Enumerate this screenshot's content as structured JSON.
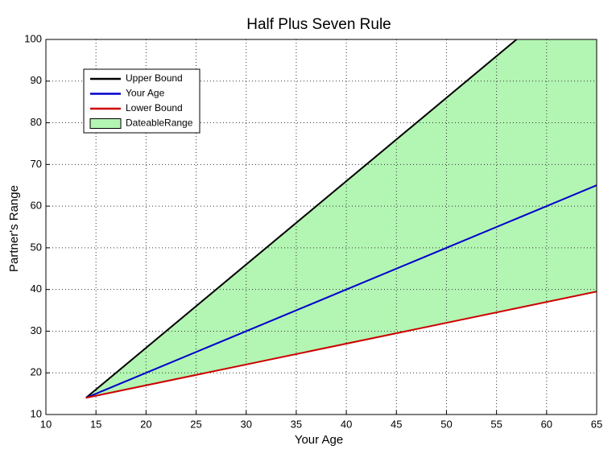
{
  "chart_data": {
    "type": "line",
    "title": "Half Plus Seven Rule",
    "xlabel": "Your Age",
    "ylabel": "Partner's Range",
    "xlim": [
      10,
      65
    ],
    "ylim": [
      10,
      100
    ],
    "xticks": [
      10,
      15,
      20,
      25,
      30,
      35,
      40,
      45,
      50,
      55,
      60,
      65
    ],
    "yticks": [
      10,
      20,
      30,
      40,
      50,
      60,
      70,
      80,
      90,
      100
    ],
    "grid": true,
    "legend": "upper left",
    "series": [
      {
        "name": "Upper Bound",
        "color": "#000000",
        "x": [
          14,
          57
        ],
        "values": [
          14,
          100
        ]
      },
      {
        "name": "Your Age",
        "color": "#0000cc",
        "x": [
          14,
          65
        ],
        "values": [
          14,
          65
        ]
      },
      {
        "name": "Lower Bound",
        "color": "#cc0000",
        "x": [
          14,
          65
        ],
        "values": [
          14,
          39.5
        ]
      },
      {
        "name": "DateableRange",
        "color": "#b3f5b3",
        "kind": "area",
        "x": [
          14,
          57,
          65
        ],
        "upper": [
          14,
          100,
          100
        ],
        "lower": [
          14,
          35.5,
          39.5
        ]
      }
    ]
  }
}
